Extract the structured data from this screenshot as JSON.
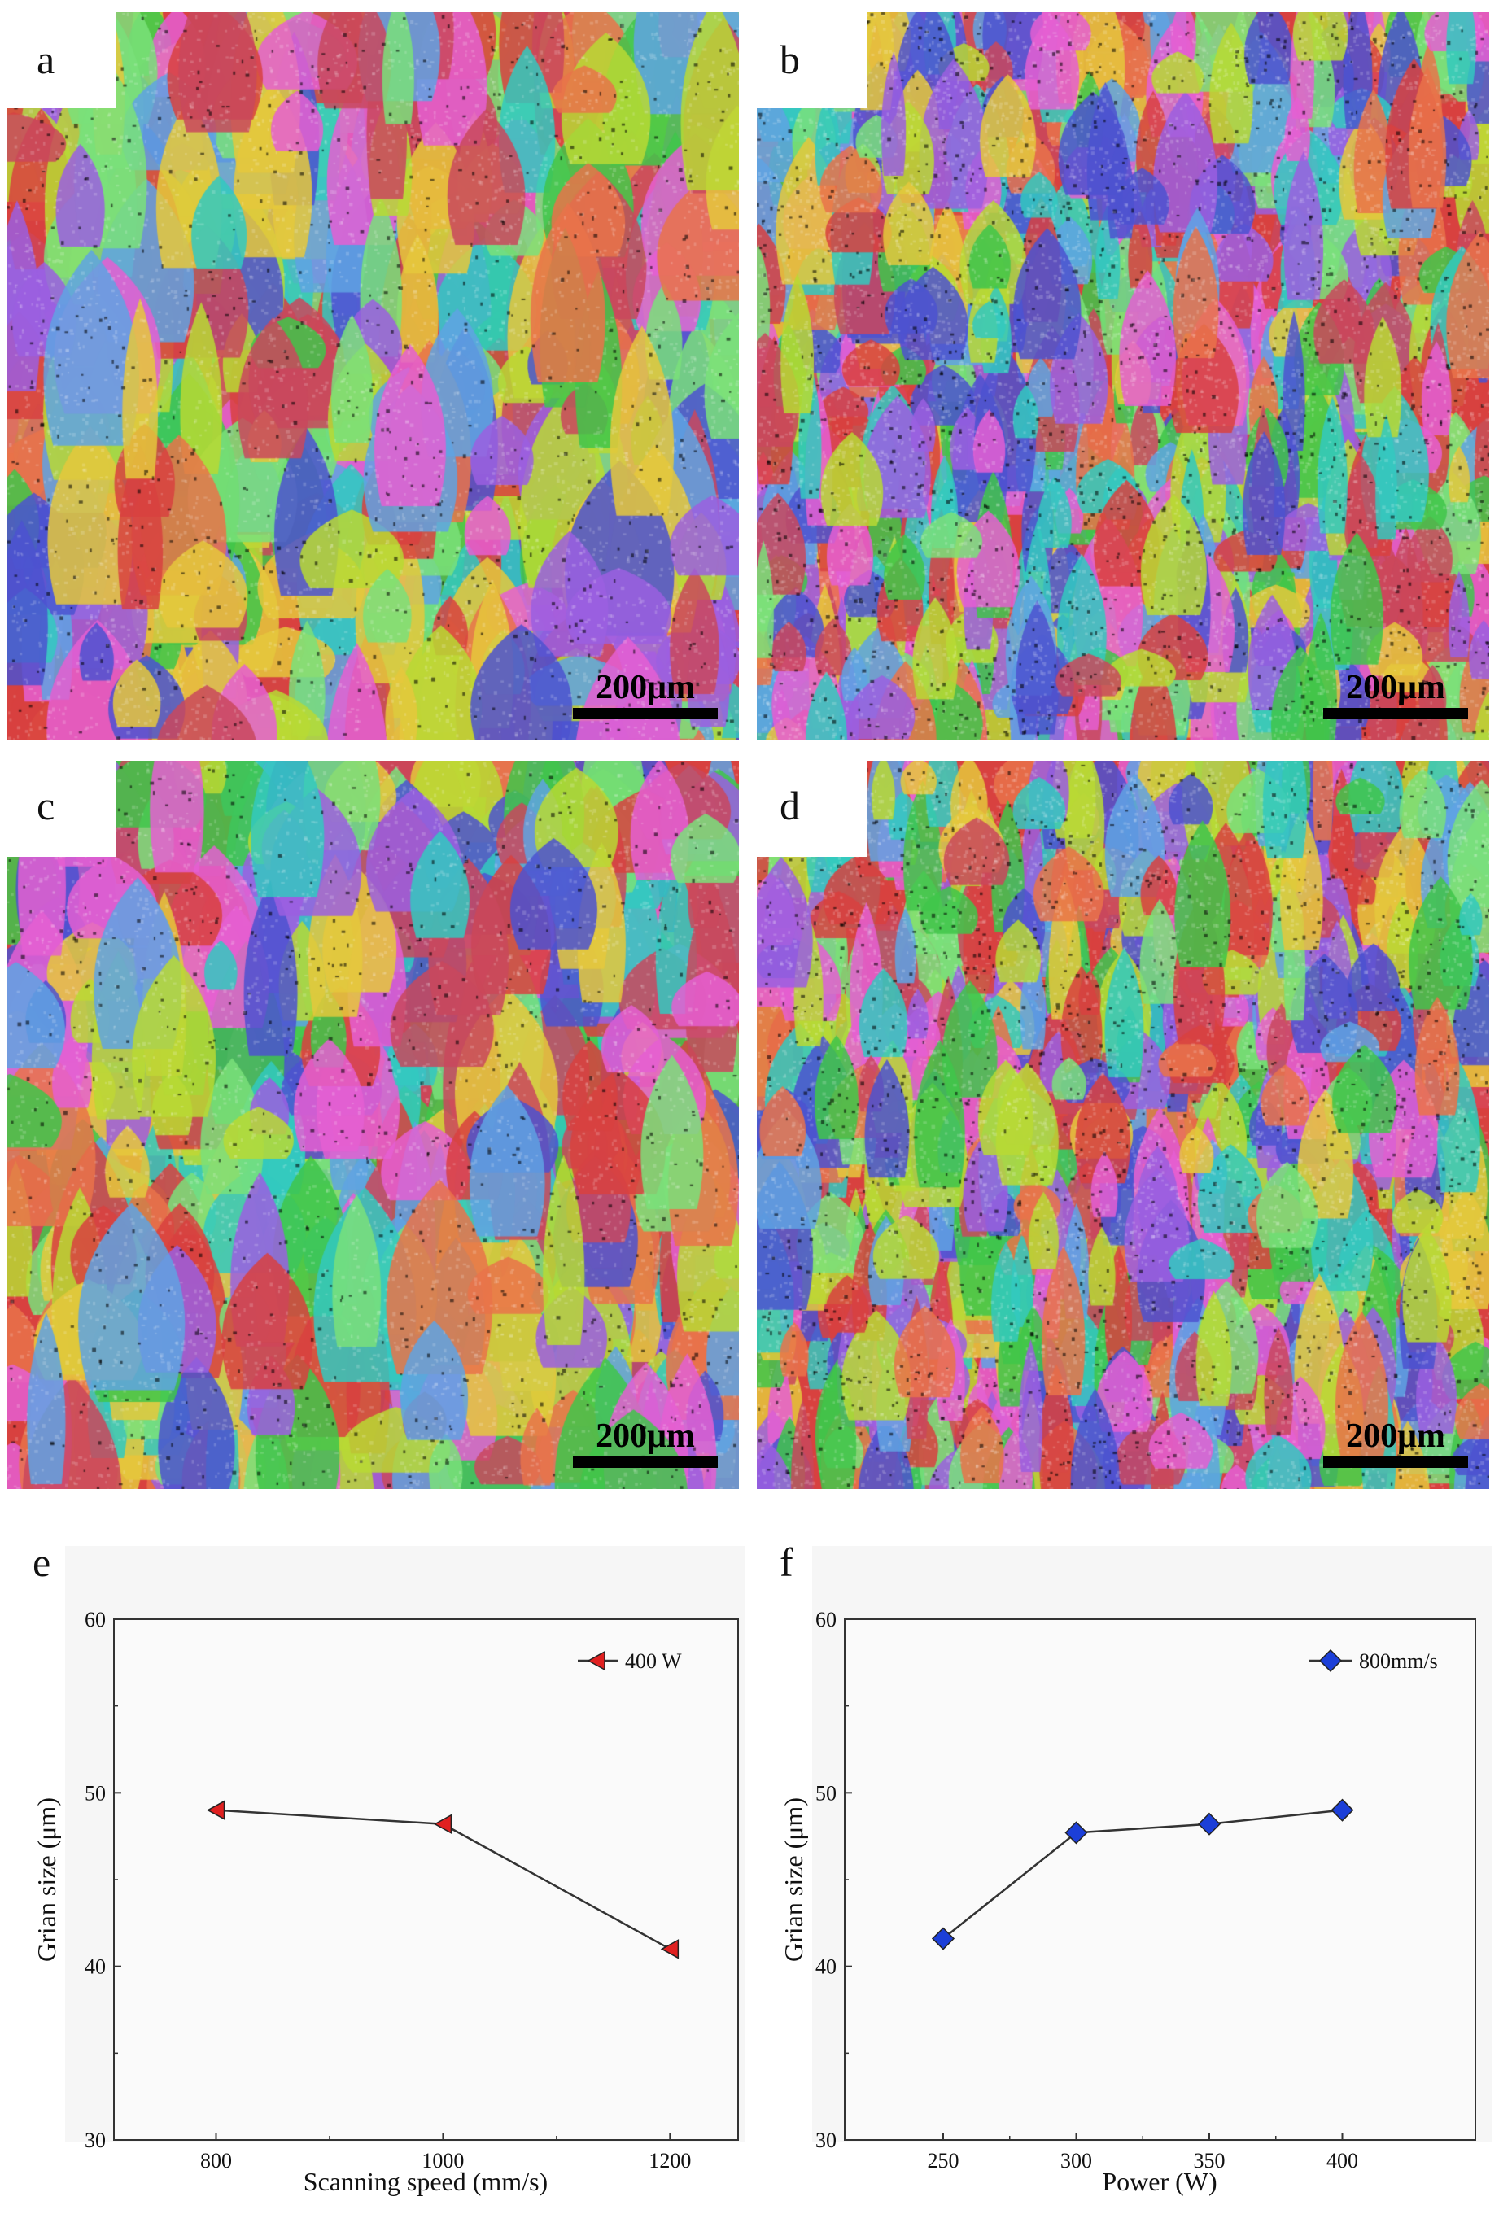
{
  "panels": {
    "a": {
      "letter": "a",
      "scale": "200μm"
    },
    "b": {
      "letter": "b",
      "scale": "200μm"
    },
    "c": {
      "letter": "c",
      "scale": "200μm"
    },
    "d": {
      "letter": "d",
      "scale": "200μm"
    },
    "e": {
      "letter": "e"
    },
    "f": {
      "letter": "f"
    }
  },
  "colors": {
    "ipf": [
      "#d8413f",
      "#3fc64a",
      "#4c52d0",
      "#e55fd2",
      "#e9734a",
      "#33c9c0",
      "#b9d934",
      "#9b5fe0",
      "#e5c83c",
      "#5fa3e3",
      "#c9485d",
      "#7ae07a"
    ],
    "series_e_marker": "#e02020",
    "series_f_marker": "#1c3fd8"
  },
  "chart_data": [
    {
      "type": "line",
      "xlabel": "Scanning speed (mm/s)",
      "ylabel": "Grian size (μm)",
      "x": [
        800,
        1000,
        1200
      ],
      "xticks": [
        "800",
        "1000",
        "1200"
      ],
      "xlim": [
        710,
        1260
      ],
      "ylim": [
        30,
        60
      ],
      "yticks": [
        "30",
        "40",
        "50",
        "60"
      ],
      "series": [
        {
          "name": "400 W",
          "marker": "left-triangle",
          "values": [
            49.0,
            48.2,
            41.0
          ]
        }
      ],
      "legend": "top-right"
    },
    {
      "type": "line",
      "xlabel": "Power (W)",
      "ylabel": "Grian size (μm)",
      "x": [
        250,
        300,
        350,
        400
      ],
      "xticks": [
        "250",
        "300",
        "350",
        "400"
      ],
      "xlim": [
        213,
        450
      ],
      "ylim": [
        30,
        60
      ],
      "yticks": [
        "30",
        "40",
        "50",
        "60"
      ],
      "series": [
        {
          "name": "800mm/s",
          "marker": "diamond",
          "values": [
            41.6,
            47.7,
            48.2,
            49.0
          ]
        }
      ],
      "legend": "top-right"
    }
  ]
}
